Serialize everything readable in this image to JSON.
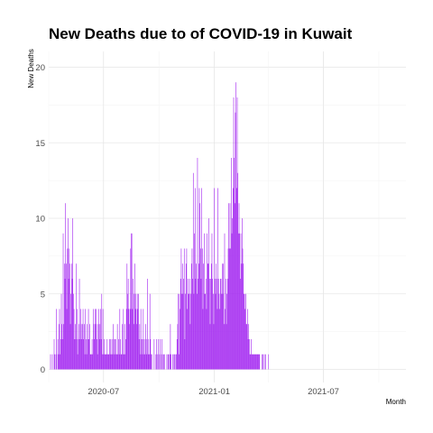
{
  "chart_data": {
    "type": "bar",
    "title": "New Deaths due to of COVID-19 in Kuwait",
    "xlabel": "Month",
    "ylabel": "New Deaths",
    "xlim": [
      "2020-04-01",
      "2021-11-15"
    ],
    "ylim": [
      0,
      20
    ],
    "y_ticks": [
      0,
      5,
      10,
      15,
      20
    ],
    "x_ticks": [
      {
        "date": "2020-07-01",
        "label": "2020-07"
      },
      {
        "date": "2021-01-01",
        "label": "2021-01"
      },
      {
        "date": "2021-07-01",
        "label": "2021-07"
      }
    ],
    "grid": true,
    "bar_color": "#A020F0",
    "start_date": "2020-04-04",
    "values": [
      1,
      0,
      0,
      1,
      0,
      0,
      2,
      1,
      0,
      1,
      4,
      0,
      2,
      1,
      3,
      4,
      1,
      2,
      5,
      3,
      2,
      9,
      3,
      7,
      6,
      11,
      7,
      4,
      8,
      10,
      6,
      8,
      7,
      3,
      5,
      7,
      6,
      10,
      5,
      4,
      2,
      3,
      2,
      7,
      4,
      1,
      2,
      3,
      6,
      2,
      4,
      3,
      2,
      3,
      4,
      2,
      3,
      1,
      4,
      2,
      1,
      3,
      2,
      4,
      2,
      3,
      1,
      1,
      1,
      2,
      1,
      4,
      3,
      2,
      4,
      3,
      4,
      2,
      1,
      3,
      4,
      2,
      3,
      4,
      2,
      5,
      1,
      4,
      1,
      2,
      1,
      1,
      1,
      1,
      2,
      1,
      1,
      1,
      2,
      1,
      2,
      1,
      2,
      1,
      3,
      2,
      1,
      2,
      2,
      1,
      1,
      3,
      1,
      2,
      1,
      4,
      2,
      1,
      1,
      3,
      1,
      4,
      1,
      3,
      1,
      2,
      4,
      7,
      5,
      6,
      4,
      3,
      4,
      8,
      9,
      9,
      4,
      6,
      3,
      5,
      7,
      5,
      4,
      3,
      5,
      4,
      5,
      2,
      3,
      1,
      4,
      2,
      1,
      2,
      4,
      1,
      2,
      1,
      3,
      2,
      1,
      6,
      2,
      1,
      1,
      5,
      2,
      1,
      1,
      0,
      0,
      0,
      2,
      0,
      0,
      1,
      2,
      1,
      0,
      2,
      1,
      0,
      2,
      0,
      1,
      2,
      0,
      1,
      1,
      1,
      0,
      0,
      0,
      1,
      0,
      1,
      1,
      0,
      1,
      3,
      1,
      0,
      0,
      1,
      0,
      1,
      1,
      0,
      1,
      1,
      2,
      3,
      5,
      1,
      5,
      4,
      6,
      8,
      5,
      7,
      5,
      6,
      8,
      2,
      5,
      7,
      8,
      4,
      6,
      5,
      5,
      6,
      3,
      5,
      7,
      8,
      6,
      13,
      5,
      9,
      12,
      6,
      7,
      5,
      14,
      6,
      7,
      12,
      11,
      8,
      6,
      12,
      8,
      4,
      7,
      9,
      5,
      5,
      6,
      4,
      9,
      7,
      7,
      10,
      6,
      3,
      6,
      7,
      9,
      6,
      5,
      3,
      12,
      6,
      5,
      7,
      6,
      4,
      12,
      6,
      5,
      4,
      6,
      6,
      5,
      7,
      5,
      7,
      3,
      9,
      4,
      6,
      3,
      5,
      6,
      8,
      11,
      8,
      11,
      8,
      14,
      9,
      10,
      12,
      18,
      14,
      11,
      17,
      19,
      12,
      18,
      13,
      9,
      11,
      9,
      6,
      9,
      7,
      10,
      8,
      7,
      5,
      5,
      4,
      5,
      3,
      3,
      4,
      2,
      3,
      2,
      1,
      1,
      2,
      1,
      1,
      1,
      1,
      1,
      1,
      1,
      1,
      1,
      1,
      1,
      1,
      1,
      1,
      0,
      0,
      0,
      1,
      0,
      1,
      0,
      1,
      0,
      1,
      0,
      0,
      0,
      0,
      1
    ]
  }
}
